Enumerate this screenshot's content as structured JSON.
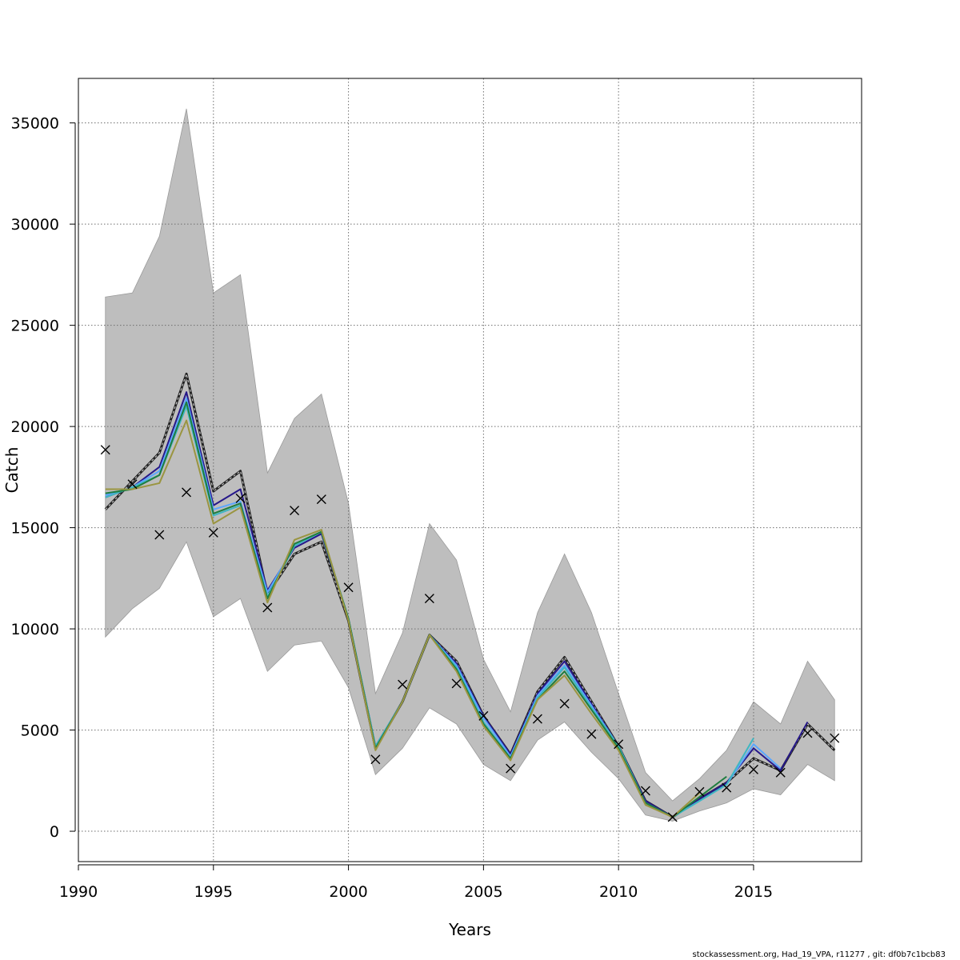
{
  "footer": "stockassessment.org, Had_19_VPA, r11277 , git: df0b7c1bcb83",
  "chart_data": {
    "type": "line",
    "title": "",
    "xlabel": "Years",
    "ylabel": "Catch",
    "xlim": [
      1990,
      2019
    ],
    "ylim": [
      -1500,
      37200
    ],
    "x_ticks": [
      "1990",
      "1995",
      "2000",
      "2005",
      "2010",
      "2015"
    ],
    "y_ticks": [
      "0",
      "5000",
      "10000",
      "15000",
      "20000",
      "25000",
      "30000",
      "35000"
    ],
    "grid": true,
    "band_color": "#bebebe",
    "band": {
      "x": [
        1991,
        1992,
        1993,
        1994,
        1995,
        1996,
        1997,
        1998,
        1999,
        2000,
        2001,
        2002,
        2003,
        2004,
        2005,
        2006,
        2007,
        2008,
        2009,
        2010,
        2011,
        2012,
        2013,
        2014,
        2015,
        2016,
        2017,
        2018
      ],
      "lower": [
        9600,
        11000,
        12000,
        14300,
        10600,
        11500,
        7900,
        9200,
        9400,
        7100,
        2800,
        4100,
        6100,
        5300,
        3300,
        2500,
        4500,
        5400,
        3900,
        2600,
        800,
        500,
        1000,
        1400,
        2100,
        1800,
        3300,
        2500
      ],
      "upper": [
        26400,
        26600,
        29400,
        35700,
        26600,
        27500,
        17700,
        20400,
        21600,
        16200,
        6800,
        9800,
        15200,
        13400,
        8500,
        5900,
        10800,
        13700,
        10800,
        6800,
        2900,
        1500,
        2600,
        4000,
        6400,
        5300,
        8400,
        6500
      ]
    },
    "series": [
      {
        "color": "#222222",
        "dashed": true,
        "x": [
          1991,
          1992,
          1993,
          1994,
          1995,
          1996,
          1997,
          1998,
          1999,
          2000,
          2001,
          2002,
          2003,
          2004,
          2005,
          2006,
          2007,
          2008,
          2009,
          2010,
          2011,
          2012,
          2013,
          2014,
          2015,
          2016,
          2017,
          2018
        ],
        "values": [
          15900,
          17300,
          18700,
          22600,
          16800,
          17800,
          11700,
          13700,
          14300,
          10400,
          4100,
          6400,
          9700,
          8400,
          5700,
          3800,
          6900,
          8600,
          6400,
          4200,
          1500,
          700,
          1600,
          2400,
          3600,
          3000,
          5300,
          4000
        ]
      },
      {
        "color": "#26188a",
        "dashed": false,
        "x": [
          1991,
          1992,
          1993,
          1994,
          1995,
          1996,
          1997,
          1998,
          1999,
          2000,
          2001,
          2002,
          2003,
          2004,
          2005,
          2006,
          2007,
          2008,
          2009,
          2010,
          2011,
          2012,
          2013,
          2014,
          2015,
          2016,
          2017
        ],
        "values": [
          16500,
          17000,
          18000,
          21700,
          16100,
          16900,
          11900,
          14000,
          14700,
          10500,
          4200,
          6400,
          9700,
          8300,
          5700,
          3800,
          6800,
          8400,
          6300,
          4200,
          1500,
          700,
          1600,
          2400,
          4100,
          3000,
          5400
        ]
      },
      {
        "color": "#5aa6ff",
        "dashed": false,
        "x": [
          1991,
          1992,
          1993,
          1994,
          1995,
          1996,
          1997,
          1998,
          1999,
          2000,
          2001,
          2002,
          2003,
          2004,
          2005,
          2006,
          2007,
          2008,
          2009,
          2010,
          2011,
          2012,
          2013,
          2014,
          2015,
          2016
        ],
        "values": [
          16600,
          17000,
          17800,
          21400,
          15900,
          16300,
          11800,
          14100,
          14800,
          10500,
          4200,
          6400,
          9700,
          8200,
          5600,
          3700,
          6700,
          8200,
          6200,
          4200,
          1400,
          700,
          1500,
          2300,
          4300,
          3100
        ]
      },
      {
        "color": "#3fb7c2",
        "dashed": false,
        "x": [
          1991,
          1992,
          1993,
          1994,
          1995,
          1996,
          1997,
          1998,
          1999,
          2000,
          2001,
          2002,
          2003,
          2004,
          2005,
          2006,
          2007,
          2008,
          2009,
          2010,
          2011,
          2012,
          2013,
          2014,
          2015
        ],
        "values": [
          16500,
          17000,
          17600,
          21000,
          15600,
          16100,
          11600,
          14100,
          14800,
          10500,
          4200,
          6400,
          9700,
          8100,
          5400,
          3600,
          6600,
          8100,
          6100,
          4200,
          1400,
          700,
          1500,
          2300,
          4600
        ]
      },
      {
        "color": "#1f7d3e",
        "dashed": false,
        "x": [
          1991,
          1992,
          1993,
          1994,
          1995,
          1996,
          1997,
          1998,
          1999,
          2000,
          2001,
          2002,
          2003,
          2004,
          2005,
          2006,
          2007,
          2008,
          2009,
          2010,
          2011,
          2012,
          2013,
          2014
        ],
        "values": [
          16700,
          16900,
          17600,
          21200,
          15700,
          16200,
          11500,
          14200,
          14800,
          10500,
          4100,
          6400,
          9700,
          8000,
          5300,
          3600,
          6500,
          7900,
          6000,
          4100,
          1400,
          700,
          1700,
          2700
        ]
      },
      {
        "color": "#9a9540",
        "dashed": false,
        "x": [
          1991,
          1992,
          1993,
          1994,
          1995,
          1996,
          1997,
          1998,
          1999,
          2000,
          2001,
          2002,
          2003,
          2004,
          2005,
          2006,
          2007,
          2008,
          2009,
          2010,
          2011,
          2012,
          2013
        ],
        "values": [
          16900,
          16900,
          17200,
          20300,
          15200,
          16000,
          11300,
          14400,
          14900,
          10400,
          4000,
          6400,
          9700,
          7900,
          5200,
          3500,
          6500,
          7700,
          5800,
          4000,
          1300,
          700,
          1900
        ]
      }
    ],
    "observations": {
      "marker": "x",
      "x": [
        1991,
        1992,
        1993,
        1994,
        1995,
        1996,
        1997,
        1998,
        1999,
        2000,
        2001,
        2002,
        2003,
        2004,
        2005,
        2006,
        2007,
        2008,
        2009,
        2010,
        2011,
        2012,
        2013,
        2014,
        2015,
        2016,
        2017,
        2018
      ],
      "values": [
        18850,
        17150,
        14650,
        16750,
        14750,
        16450,
        11050,
        15850,
        16400,
        12050,
        3550,
        7250,
        11500,
        7300,
        5700,
        3100,
        5550,
        6300,
        4800,
        4300,
        2000,
        700,
        1950,
        2150,
        3050,
        2900,
        4850,
        4600
      ]
    }
  }
}
